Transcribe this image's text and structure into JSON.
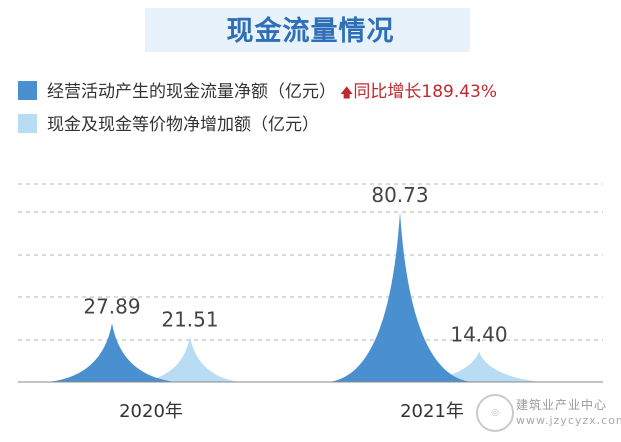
{
  "title": "现金流量情况",
  "legend": {
    "series1": "经营活动产生的现金流量净额（亿元）",
    "series2": "现金及现金等价物净增加额（亿元）",
    "yoy": "同比增长189.43%"
  },
  "chart_data": {
    "type": "area",
    "title": "现金流量情况",
    "categories": [
      "2020年",
      "2021年"
    ],
    "series": [
      {
        "name": "经营活动产生的现金流量净额（亿元）",
        "values": [
          27.89,
          80.73
        ],
        "labels": [
          "27.89",
          "80.73"
        ]
      },
      {
        "name": "现金及现金等价物净增加额（亿元）",
        "values": [
          21.51,
          14.4
        ],
        "labels": [
          "21.51",
          "14.40"
        ]
      }
    ],
    "ylim": [
      0,
      90
    ],
    "grid": true,
    "legend": "top-left",
    "annotation": "同比增长189.43%"
  },
  "colors": {
    "series1": "#4a8fd0",
    "series2": "#b9dcf5",
    "title": "#2f6fb7",
    "title_band": "#e7f2fb",
    "yoy": "#c0282e",
    "grid": "#b5b5b5"
  },
  "watermark": {
    "name": "建筑业产业中心",
    "url": "www.jzycyzx.com"
  }
}
